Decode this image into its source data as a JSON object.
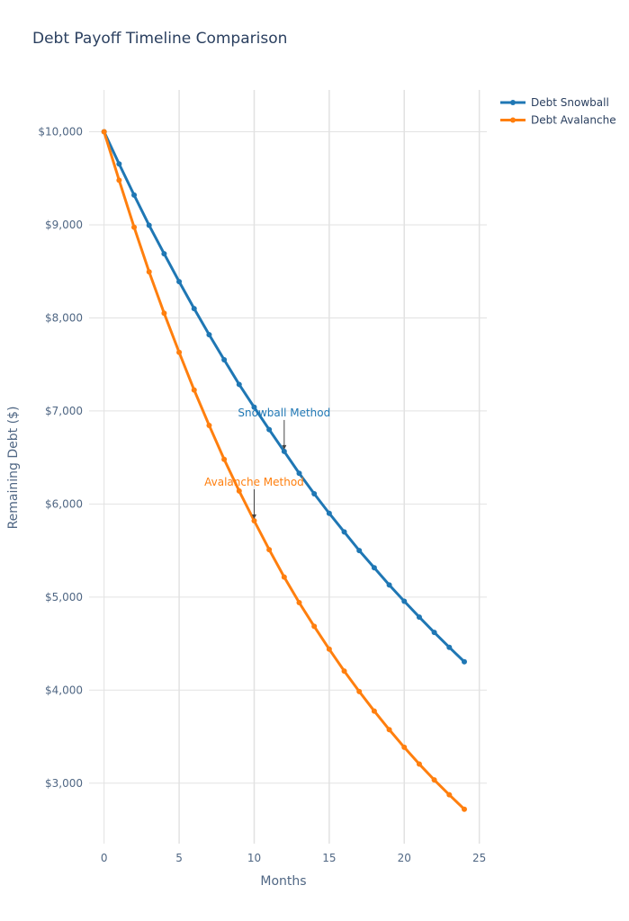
{
  "chart_data": {
    "type": "line",
    "title": "Debt Payoff Timeline Comparison",
    "xlabel": "Months",
    "ylabel": "Remaining Debt ($)",
    "xlim": [
      -1,
      25.5
    ],
    "ylim": [
      2350,
      10450
    ],
    "x_ticks": [
      0,
      5,
      10,
      15,
      20,
      25
    ],
    "x_tick_labels": [
      "0",
      "5",
      "10",
      "15",
      "20",
      "25"
    ],
    "y_ticks": [
      3000,
      4000,
      5000,
      6000,
      7000,
      8000,
      9000,
      10000
    ],
    "y_tick_labels": [
      "$3,000",
      "$4,000",
      "$5,000",
      "$6,000",
      "$7,000",
      "$8,000",
      "$9,000",
      "$10,000"
    ],
    "grid": true,
    "legend_position": "top-right",
    "series": [
      {
        "name": "Debt Snowball",
        "color": "#1f77b4",
        "x": [
          0,
          1,
          2,
          3,
          4,
          5,
          6,
          7,
          8,
          9,
          10,
          11,
          12,
          13,
          14,
          15,
          16,
          17,
          18,
          19,
          20,
          21,
          22,
          23,
          24
        ],
        "values": [
          10000,
          9655,
          9320,
          8995,
          8690,
          8390,
          8100,
          7820,
          7550,
          7285,
          7040,
          6800,
          6565,
          6330,
          6110,
          5900,
          5700,
          5500,
          5315,
          5130,
          4955,
          4785,
          4620,
          4460,
          4305
        ]
      },
      {
        "name": "Debt Avalanche",
        "color": "#ff7f0e",
        "x": [
          0,
          1,
          2,
          3,
          4,
          5,
          6,
          7,
          8,
          9,
          10,
          11,
          12,
          13,
          14,
          15,
          16,
          17,
          18,
          19,
          20,
          21,
          22,
          23,
          24
        ],
        "values": [
          10000,
          9480,
          8975,
          8495,
          8050,
          7630,
          7225,
          6845,
          6480,
          6140,
          5820,
          5510,
          5215,
          4940,
          4685,
          4440,
          4205,
          3985,
          3775,
          3575,
          3385,
          3205,
          3035,
          2875,
          2720
        ]
      }
    ],
    "annotations": [
      {
        "text": "Snowball Method",
        "x": 12,
        "y": 6565,
        "color": "#1f77b4"
      },
      {
        "text": "Avalanche Method",
        "x": 10,
        "y": 5820,
        "color": "#ff7f0e"
      }
    ]
  }
}
